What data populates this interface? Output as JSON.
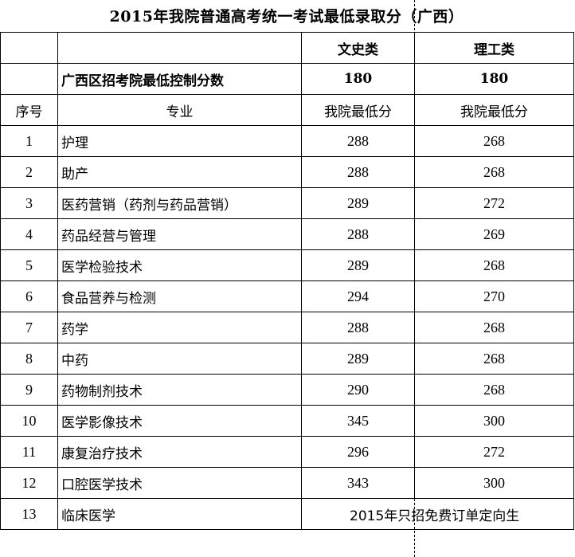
{
  "title": "2015年我院普通高考统一考试最低录取分（广西）",
  "header": {
    "category_arts": "文史类",
    "category_science": "理工类",
    "control_label": "广西区招考院最低控制分数",
    "control_arts": "180",
    "control_science": "180",
    "col_index": "序号",
    "col_major": "专业",
    "col_arts_min": "我院最低分",
    "col_science_min": "我院最低分"
  },
  "rows": [
    {
      "no": "1",
      "major": "护理",
      "arts": "288",
      "science": "268"
    },
    {
      "no": "2",
      "major": "助产",
      "arts": "288",
      "science": "268"
    },
    {
      "no": "3",
      "major": "医药营销（药剂与药品营销）",
      "arts": "289",
      "science": "272"
    },
    {
      "no": "4",
      "major": "药品经营与管理",
      "arts": "288",
      "science": "269"
    },
    {
      "no": "5",
      "major": "医学检验技术",
      "arts": "289",
      "science": "268"
    },
    {
      "no": "6",
      "major": "食品营养与检测",
      "arts": "294",
      "science": "270"
    },
    {
      "no": "7",
      "major": "药学",
      "arts": "288",
      "science": "268"
    },
    {
      "no": "8",
      "major": "中药",
      "arts": "289",
      "science": "268"
    },
    {
      "no": "9",
      "major": "药物制剂技术",
      "arts": "290",
      "science": "268"
    },
    {
      "no": "10",
      "major": "医学影像技术",
      "arts": "345",
      "science": "300"
    },
    {
      "no": "11",
      "major": "康复治疗技术",
      "arts": "296",
      "science": "272"
    },
    {
      "no": "12",
      "major": "口腔医学技术",
      "arts": "343",
      "science": "300"
    }
  ],
  "last_row": {
    "no": "13",
    "major": "临床医学",
    "note": "2015年只招免费订单定向生"
  }
}
